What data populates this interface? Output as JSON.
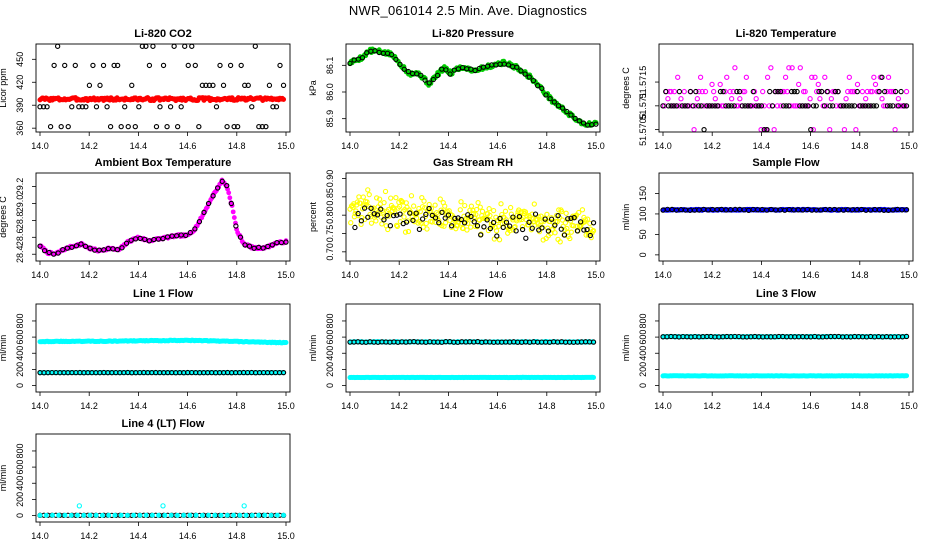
{
  "title": "NWR_061014  2.5 Min. Ave. Diagnostics",
  "colors": {
    "red": "#ff0000",
    "green": "#00cc00",
    "magenta": "#ff00ff",
    "yellow": "#ffff00",
    "blue": "#0000ff",
    "cyan": "#00ffff",
    "black": "#000000"
  },
  "chart_data": [
    {
      "id": "co2",
      "type": "scatter",
      "title": "Li-820 CO2",
      "ylabel": "Licor ppm",
      "xlim": [
        14.0,
        15.0
      ],
      "ylim": [
        355,
        470
      ],
      "xticks": [
        14.0,
        14.2,
        14.4,
        14.6,
        14.8,
        15.0
      ],
      "yticks": [
        360,
        390,
        420,
        450
      ],
      "xtick_labels": [
        "14.0",
        "14.2",
        "14.4",
        "14.6",
        "14.8",
        "15.0"
      ],
      "ytick_labels": [
        "360",
        "390",
        "420",
        "450"
      ],
      "series": [
        {
          "name": "co2-red",
          "color": "#ff0000",
          "style": "line",
          "kind": "noise",
          "base": 398,
          "amp": 2,
          "seed": 3,
          "n": 200,
          "x0": 14.0,
          "x1": 14.99
        },
        {
          "name": "co2-black",
          "color": "#000000",
          "style": "open",
          "kind": "quant",
          "levels": [
            362,
            388,
            416,
            442,
            467
          ],
          "seed": 11,
          "n": 70,
          "x0": 14.0,
          "x1": 14.99
        }
      ]
    },
    {
      "id": "pressure",
      "type": "scatter",
      "title": "Li-820 Pressure",
      "ylabel": "kPa",
      "xlim": [
        14.0,
        15.0
      ],
      "ylim": [
        85.85,
        86.18
      ],
      "xticks": [
        14.0,
        14.2,
        14.4,
        14.6,
        14.8,
        15.0
      ],
      "yticks": [
        85.9,
        86.0,
        86.1
      ],
      "xtick_labels": [
        "14.0",
        "14.2",
        "14.4",
        "14.6",
        "14.8",
        "15.0"
      ],
      "ytick_labels": [
        "85.9",
        "86.0",
        "86.1"
      ],
      "series": [
        {
          "name": "pressure-green",
          "color": "#00cc00",
          "style": "filled",
          "kind": "interp",
          "jitter": 0.008,
          "seed": 5,
          "n": 220,
          "points": [
            [
              14.0,
              86.11
            ],
            [
              14.05,
              86.13
            ],
            [
              14.08,
              86.155
            ],
            [
              14.13,
              86.15
            ],
            [
              14.17,
              86.14
            ],
            [
              14.2,
              86.11
            ],
            [
              14.24,
              86.07
            ],
            [
              14.28,
              86.07
            ],
            [
              14.32,
              86.03
            ],
            [
              14.35,
              86.06
            ],
            [
              14.38,
              86.09
            ],
            [
              14.41,
              86.07
            ],
            [
              14.44,
              86.09
            ],
            [
              14.48,
              86.09
            ],
            [
              14.5,
              86.08
            ],
            [
              14.54,
              86.09
            ],
            [
              14.58,
              86.1
            ],
            [
              14.62,
              86.11
            ],
            [
              14.66,
              86.1
            ],
            [
              14.7,
              86.08
            ],
            [
              14.74,
              86.05
            ],
            [
              14.78,
              86.01
            ],
            [
              14.82,
              85.97
            ],
            [
              14.86,
              85.94
            ],
            [
              14.9,
              85.91
            ],
            [
              14.95,
              85.88
            ],
            [
              15.0,
              85.88
            ]
          ]
        },
        {
          "name": "pressure-black",
          "color": "#000000",
          "style": "open",
          "kind": "sample",
          "of": "pressure-green",
          "jitter": 0.005,
          "seed": 17,
          "n": 60
        }
      ]
    },
    {
      "id": "licor-temp",
      "type": "scatter",
      "title": "Li-820 Temperature",
      "ylabel": "degrees C",
      "xlim": [
        14.0,
        15.0
      ],
      "ylim": [
        51.57045,
        51.5723
      ],
      "xticks": [
        14.0,
        14.2,
        14.4,
        14.6,
        14.8,
        15.0
      ],
      "yticks": [
        51.5705,
        51.571,
        51.5715
      ],
      "xtick_labels": [
        "14.0",
        "14.2",
        "14.4",
        "14.6",
        "14.8",
        "15.0"
      ],
      "ytick_labels": [
        "51.5705",
        "51.571",
        "51.5715"
      ],
      "series": [
        {
          "name": "temp-magenta",
          "color": "#ff00ff",
          "style": "open",
          "kind": "quant",
          "levels": [
            51.5705,
            51.571,
            51.57115,
            51.5713,
            51.57145,
            51.5716,
            51.5718
          ],
          "weights": [
            6,
            40,
            8,
            30,
            5,
            6,
            5
          ],
          "seed": 23,
          "n": 150,
          "x0": 14.0,
          "x1": 14.99
        },
        {
          "name": "temp-black",
          "color": "#000000",
          "style": "open",
          "kind": "quant",
          "levels": [
            51.5705,
            51.571,
            51.5713,
            51.5716
          ],
          "weights": [
            3,
            70,
            18,
            3
          ],
          "seed": 29,
          "n": 90,
          "x0": 14.0,
          "x1": 14.99
        }
      ]
    },
    {
      "id": "ambient-temp",
      "type": "scatter",
      "title": "Ambient Box Temperature",
      "ylabel": "degrees C",
      "xlim": [
        14.0,
        15.0
      ],
      "ylim": [
        28.32,
        29.36
      ],
      "xticks": [
        14.0,
        14.2,
        14.4,
        14.6,
        14.8,
        15.0
      ],
      "yticks": [
        28.4,
        28.6,
        28.8,
        29.0,
        29.2
      ],
      "xtick_labels": [
        "14.0",
        "14.2",
        "14.4",
        "14.6",
        "14.8",
        "15.0"
      ],
      "ytick_labels": [
        "28.4",
        "28.6",
        "28.8",
        "29.0",
        "29.2"
      ],
      "series": [
        {
          "name": "ambient-magenta",
          "color": "#ff00ff",
          "style": "filled",
          "kind": "interp",
          "jitter": 0.012,
          "seed": 7,
          "n": 220,
          "points": [
            [
              14.0,
              28.5
            ],
            [
              14.03,
              28.42
            ],
            [
              14.06,
              28.4
            ],
            [
              14.1,
              28.46
            ],
            [
              14.14,
              28.5
            ],
            [
              14.17,
              28.52
            ],
            [
              14.2,
              28.47
            ],
            [
              14.24,
              28.44
            ],
            [
              14.28,
              28.47
            ],
            [
              14.32,
              28.45
            ],
            [
              14.36,
              28.55
            ],
            [
              14.4,
              28.6
            ],
            [
              14.44,
              28.56
            ],
            [
              14.48,
              28.58
            ],
            [
              14.52,
              28.6
            ],
            [
              14.56,
              28.62
            ],
            [
              14.6,
              28.62
            ],
            [
              14.63,
              28.7
            ],
            [
              14.66,
              28.85
            ],
            [
              14.7,
              29.08
            ],
            [
              14.74,
              29.27
            ],
            [
              14.76,
              29.2
            ],
            [
              14.78,
              28.98
            ],
            [
              14.8,
              28.68
            ],
            [
              14.83,
              28.52
            ],
            [
              14.87,
              28.47
            ],
            [
              14.92,
              28.48
            ],
            [
              14.96,
              28.53
            ],
            [
              15.0,
              28.55
            ]
          ]
        },
        {
          "name": "ambient-black",
          "color": "#000000",
          "style": "open",
          "kind": "sample",
          "of": "ambient-magenta",
          "jitter": 0.008,
          "seed": 19,
          "n": 55
        }
      ]
    },
    {
      "id": "rh",
      "type": "scatter",
      "title": "Gas Stream RH",
      "ylabel": "percent",
      "xlim": [
        14.0,
        15.0
      ],
      "ylim": [
        0.675,
        0.915
      ],
      "xticks": [
        14.0,
        14.2,
        14.4,
        14.6,
        14.8,
        15.0
      ],
      "yticks": [
        0.7,
        0.75,
        0.8,
        0.85,
        0.9
      ],
      "xtick_labels": [
        "14.0",
        "14.2",
        "14.4",
        "14.6",
        "14.8",
        "15.0"
      ],
      "ytick_labels": [
        "0.70",
        "0.75",
        "0.80",
        "0.85",
        "0.90"
      ],
      "series": [
        {
          "name": "rh-yellow",
          "color": "#ffff00",
          "style": "open",
          "kind": "trend",
          "start": 0.82,
          "end": 0.765,
          "spread": 0.035,
          "seed": 13,
          "n": 330,
          "x0": 14.0,
          "x1": 14.99
        },
        {
          "name": "rh-black",
          "color": "#000000",
          "style": "open",
          "kind": "trend",
          "start": 0.8,
          "end": 0.765,
          "spread": 0.025,
          "seed": 31,
          "n": 75,
          "x0": 14.02,
          "x1": 14.99
        }
      ]
    },
    {
      "id": "sample-flow",
      "type": "scatter",
      "title": "Sample Flow",
      "ylabel": "ml/min",
      "xlim": [
        14.0,
        15.0
      ],
      "ylim": [
        -15,
        200
      ],
      "xticks": [
        14.0,
        14.2,
        14.4,
        14.6,
        14.8,
        15.0
      ],
      "yticks": [
        0,
        50,
        100,
        150
      ],
      "xtick_labels": [
        "14.0",
        "14.2",
        "14.4",
        "14.6",
        "14.8",
        "15.0"
      ],
      "ytick_labels": [
        "0",
        "50",
        "100",
        "150"
      ],
      "series": [
        {
          "name": "sample-blue",
          "color": "#0000ff",
          "style": "line",
          "kind": "noise",
          "base": 110,
          "amp": 1.2,
          "seed": 37,
          "n": 200,
          "x0": 14.0,
          "x1": 14.99
        },
        {
          "name": "sample-black",
          "color": "#000000",
          "style": "open",
          "kind": "noise",
          "base": 110,
          "amp": 1.2,
          "seed": 41,
          "n": 55,
          "x0": 14.0,
          "x1": 14.99
        }
      ]
    },
    {
      "id": "line1",
      "type": "scatter",
      "title": "Line 1 Flow",
      "ylabel": "ml/min",
      "xlim": [
        14.0,
        15.0
      ],
      "ylim": [
        -80,
        1010
      ],
      "xticks": [
        14.0,
        14.2,
        14.4,
        14.6,
        14.8,
        15.0
      ],
      "yticks": [
        0,
        200,
        400,
        600,
        800
      ],
      "xtick_labels": [
        "14.0",
        "14.2",
        "14.4",
        "14.6",
        "14.8",
        "15.0"
      ],
      "ytick_labels": [
        "0",
        "200",
        "400",
        "600",
        "800"
      ],
      "series": [
        {
          "name": "line1-cyan-high",
          "color": "#00ffff",
          "style": "line",
          "kind": "interp",
          "jitter": 4,
          "seed": 43,
          "n": 200,
          "points": [
            [
              14.0,
              545
            ],
            [
              14.3,
              550
            ],
            [
              14.6,
              560
            ],
            [
              14.8,
              545
            ],
            [
              15.0,
              530
            ]
          ]
        },
        {
          "name": "line1-cyan-low",
          "color": "#00ffff",
          "style": "line",
          "kind": "noise",
          "base": 160,
          "amp": 1,
          "seed": 47,
          "n": 120,
          "x0": 14.0,
          "x1": 14.99
        },
        {
          "name": "line1-black",
          "color": "#000000",
          "style": "open",
          "kind": "noise",
          "base": 160,
          "amp": 1,
          "seed": 53,
          "n": 62,
          "x0": 14.0,
          "x1": 14.99
        }
      ]
    },
    {
      "id": "line2",
      "type": "scatter",
      "title": "Line 2 Flow",
      "ylabel": "ml/min",
      "xlim": [
        14.0,
        15.0
      ],
      "ylim": [
        -80,
        1010
      ],
      "xticks": [
        14.0,
        14.2,
        14.4,
        14.6,
        14.8,
        15.0
      ],
      "yticks": [
        0,
        200,
        400,
        600,
        800
      ],
      "xtick_labels": [
        "14.0",
        "14.2",
        "14.4",
        "14.6",
        "14.8",
        "15.0"
      ],
      "ytick_labels": [
        "0",
        "200",
        "400",
        "600",
        "800"
      ],
      "series": [
        {
          "name": "line2-cyan-high",
          "color": "#00ffff",
          "style": "line",
          "kind": "noise",
          "base": 540,
          "amp": 4,
          "seed": 59,
          "n": 200,
          "x0": 14.0,
          "x1": 14.99
        },
        {
          "name": "line2-cyan-low",
          "color": "#00ffff",
          "style": "line",
          "kind": "noise",
          "base": 100,
          "amp": 2,
          "seed": 61,
          "n": 200,
          "x0": 14.0,
          "x1": 14.99
        },
        {
          "name": "line2-black",
          "color": "#000000",
          "style": "open",
          "kind": "noise",
          "base": 540,
          "amp": 4,
          "seed": 67,
          "n": 62,
          "x0": 14.0,
          "x1": 14.99
        }
      ]
    },
    {
      "id": "line3",
      "type": "scatter",
      "title": "Line 3 Flow",
      "ylabel": "ml/min",
      "xlim": [
        14.0,
        15.0
      ],
      "ylim": [
        -80,
        1010
      ],
      "xticks": [
        14.0,
        14.2,
        14.4,
        14.6,
        14.8,
        15.0
      ],
      "yticks": [
        0,
        200,
        400,
        600,
        800
      ],
      "xtick_labels": [
        "14.0",
        "14.2",
        "14.4",
        "14.6",
        "14.8",
        "15.0"
      ],
      "ytick_labels": [
        "0",
        "200",
        "400",
        "600",
        "800"
      ],
      "series": [
        {
          "name": "line3-cyan-high",
          "color": "#00ffff",
          "style": "line",
          "kind": "noise",
          "base": 605,
          "amp": 3,
          "seed": 71,
          "n": 200,
          "x0": 14.0,
          "x1": 14.99
        },
        {
          "name": "line3-cyan-low",
          "color": "#00ffff",
          "style": "line",
          "kind": "noise",
          "base": 120,
          "amp": 2,
          "seed": 73,
          "n": 200,
          "x0": 14.0,
          "x1": 14.99
        },
        {
          "name": "line3-black",
          "color": "#000000",
          "style": "open",
          "kind": "noise",
          "base": 605,
          "amp": 3,
          "seed": 79,
          "n": 62,
          "x0": 14.0,
          "x1": 14.99
        }
      ]
    },
    {
      "id": "line4",
      "type": "scatter",
      "title": "Line 4 (LT) Flow",
      "ylabel": "ml/min",
      "xlim": [
        14.0,
        15.0
      ],
      "ylim": [
        -80,
        1010
      ],
      "xticks": [
        14.0,
        14.2,
        14.4,
        14.6,
        14.8,
        15.0
      ],
      "yticks": [
        0,
        200,
        400,
        600,
        800
      ],
      "xtick_labels": [
        "14.0",
        "14.2",
        "14.4",
        "14.6",
        "14.8",
        "15.0"
      ],
      "ytick_labels": [
        "0",
        "200",
        "400",
        "600",
        "800"
      ],
      "series": [
        {
          "name": "line4-black",
          "color": "#000000",
          "style": "open",
          "kind": "noise",
          "base": 3,
          "amp": 1,
          "seed": 83,
          "n": 62,
          "x0": 14.0,
          "x1": 14.99
        },
        {
          "name": "line4-cyan-base",
          "color": "#00ffff",
          "style": "line",
          "kind": "noise",
          "base": 3,
          "amp": 1,
          "seed": 89,
          "n": 40,
          "x0": 14.0,
          "x1": 14.99
        },
        {
          "name": "line4-cyan-spikes",
          "color": "#00ffff",
          "style": "open",
          "kind": "points",
          "points": [
            [
              14.16,
              120
            ],
            [
              14.5,
              120
            ],
            [
              14.83,
              120
            ]
          ]
        }
      ]
    }
  ]
}
